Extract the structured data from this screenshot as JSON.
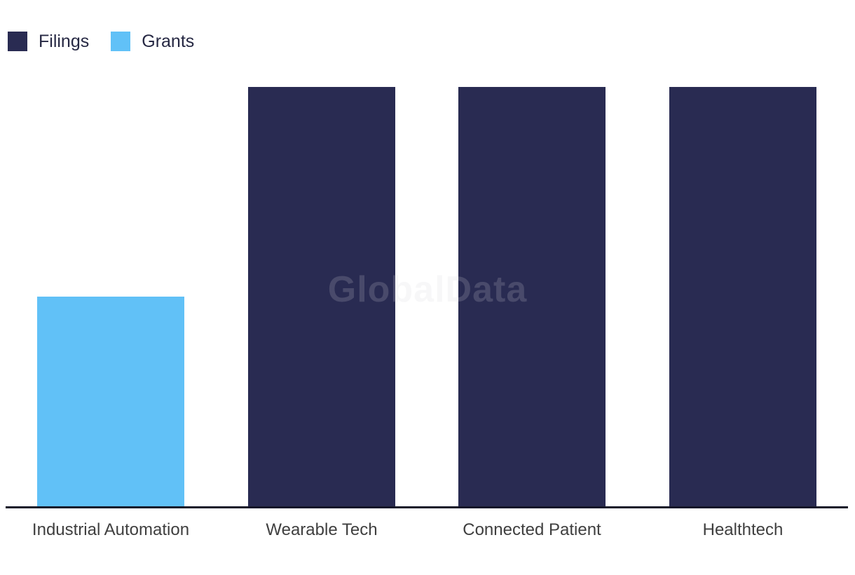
{
  "watermark": "GlobalData",
  "colors": {
    "filings": "#292b52",
    "grants": "#61c1f7",
    "axis_line": "#14162a",
    "x_label_text": "#3f3f3f",
    "legend_text": "#262843",
    "background": "#ffffff",
    "watermark_text": "rgba(213,213,220,0.19)"
  },
  "legend": {
    "items": [
      {
        "label": "Filings",
        "color": "#292b52"
      },
      {
        "label": "Grants",
        "color": "#61c1f7"
      }
    ]
  },
  "chart_data": {
    "type": "bar",
    "title": "",
    "xlabel": "",
    "ylabel": "",
    "categories": [
      "Industrial Automation",
      "Wearable Tech",
      "Connected Patient",
      "Healthtech"
    ],
    "series": [
      {
        "name": "Filings",
        "color": "#292b52",
        "values": [
          0,
          1,
          1,
          1
        ]
      },
      {
        "name": "Grants",
        "color": "#61c1f7",
        "values": [
          0.5,
          0,
          0,
          0
        ]
      }
    ],
    "ylim": [
      0,
      1
    ],
    "y_axis_shown": false,
    "grid": false,
    "legend_position": "top-left",
    "values_note": "No numeric y-axis visible; values are relative bar heights (tall Filings bars = 1.0, Grants bar = 0.5)."
  }
}
